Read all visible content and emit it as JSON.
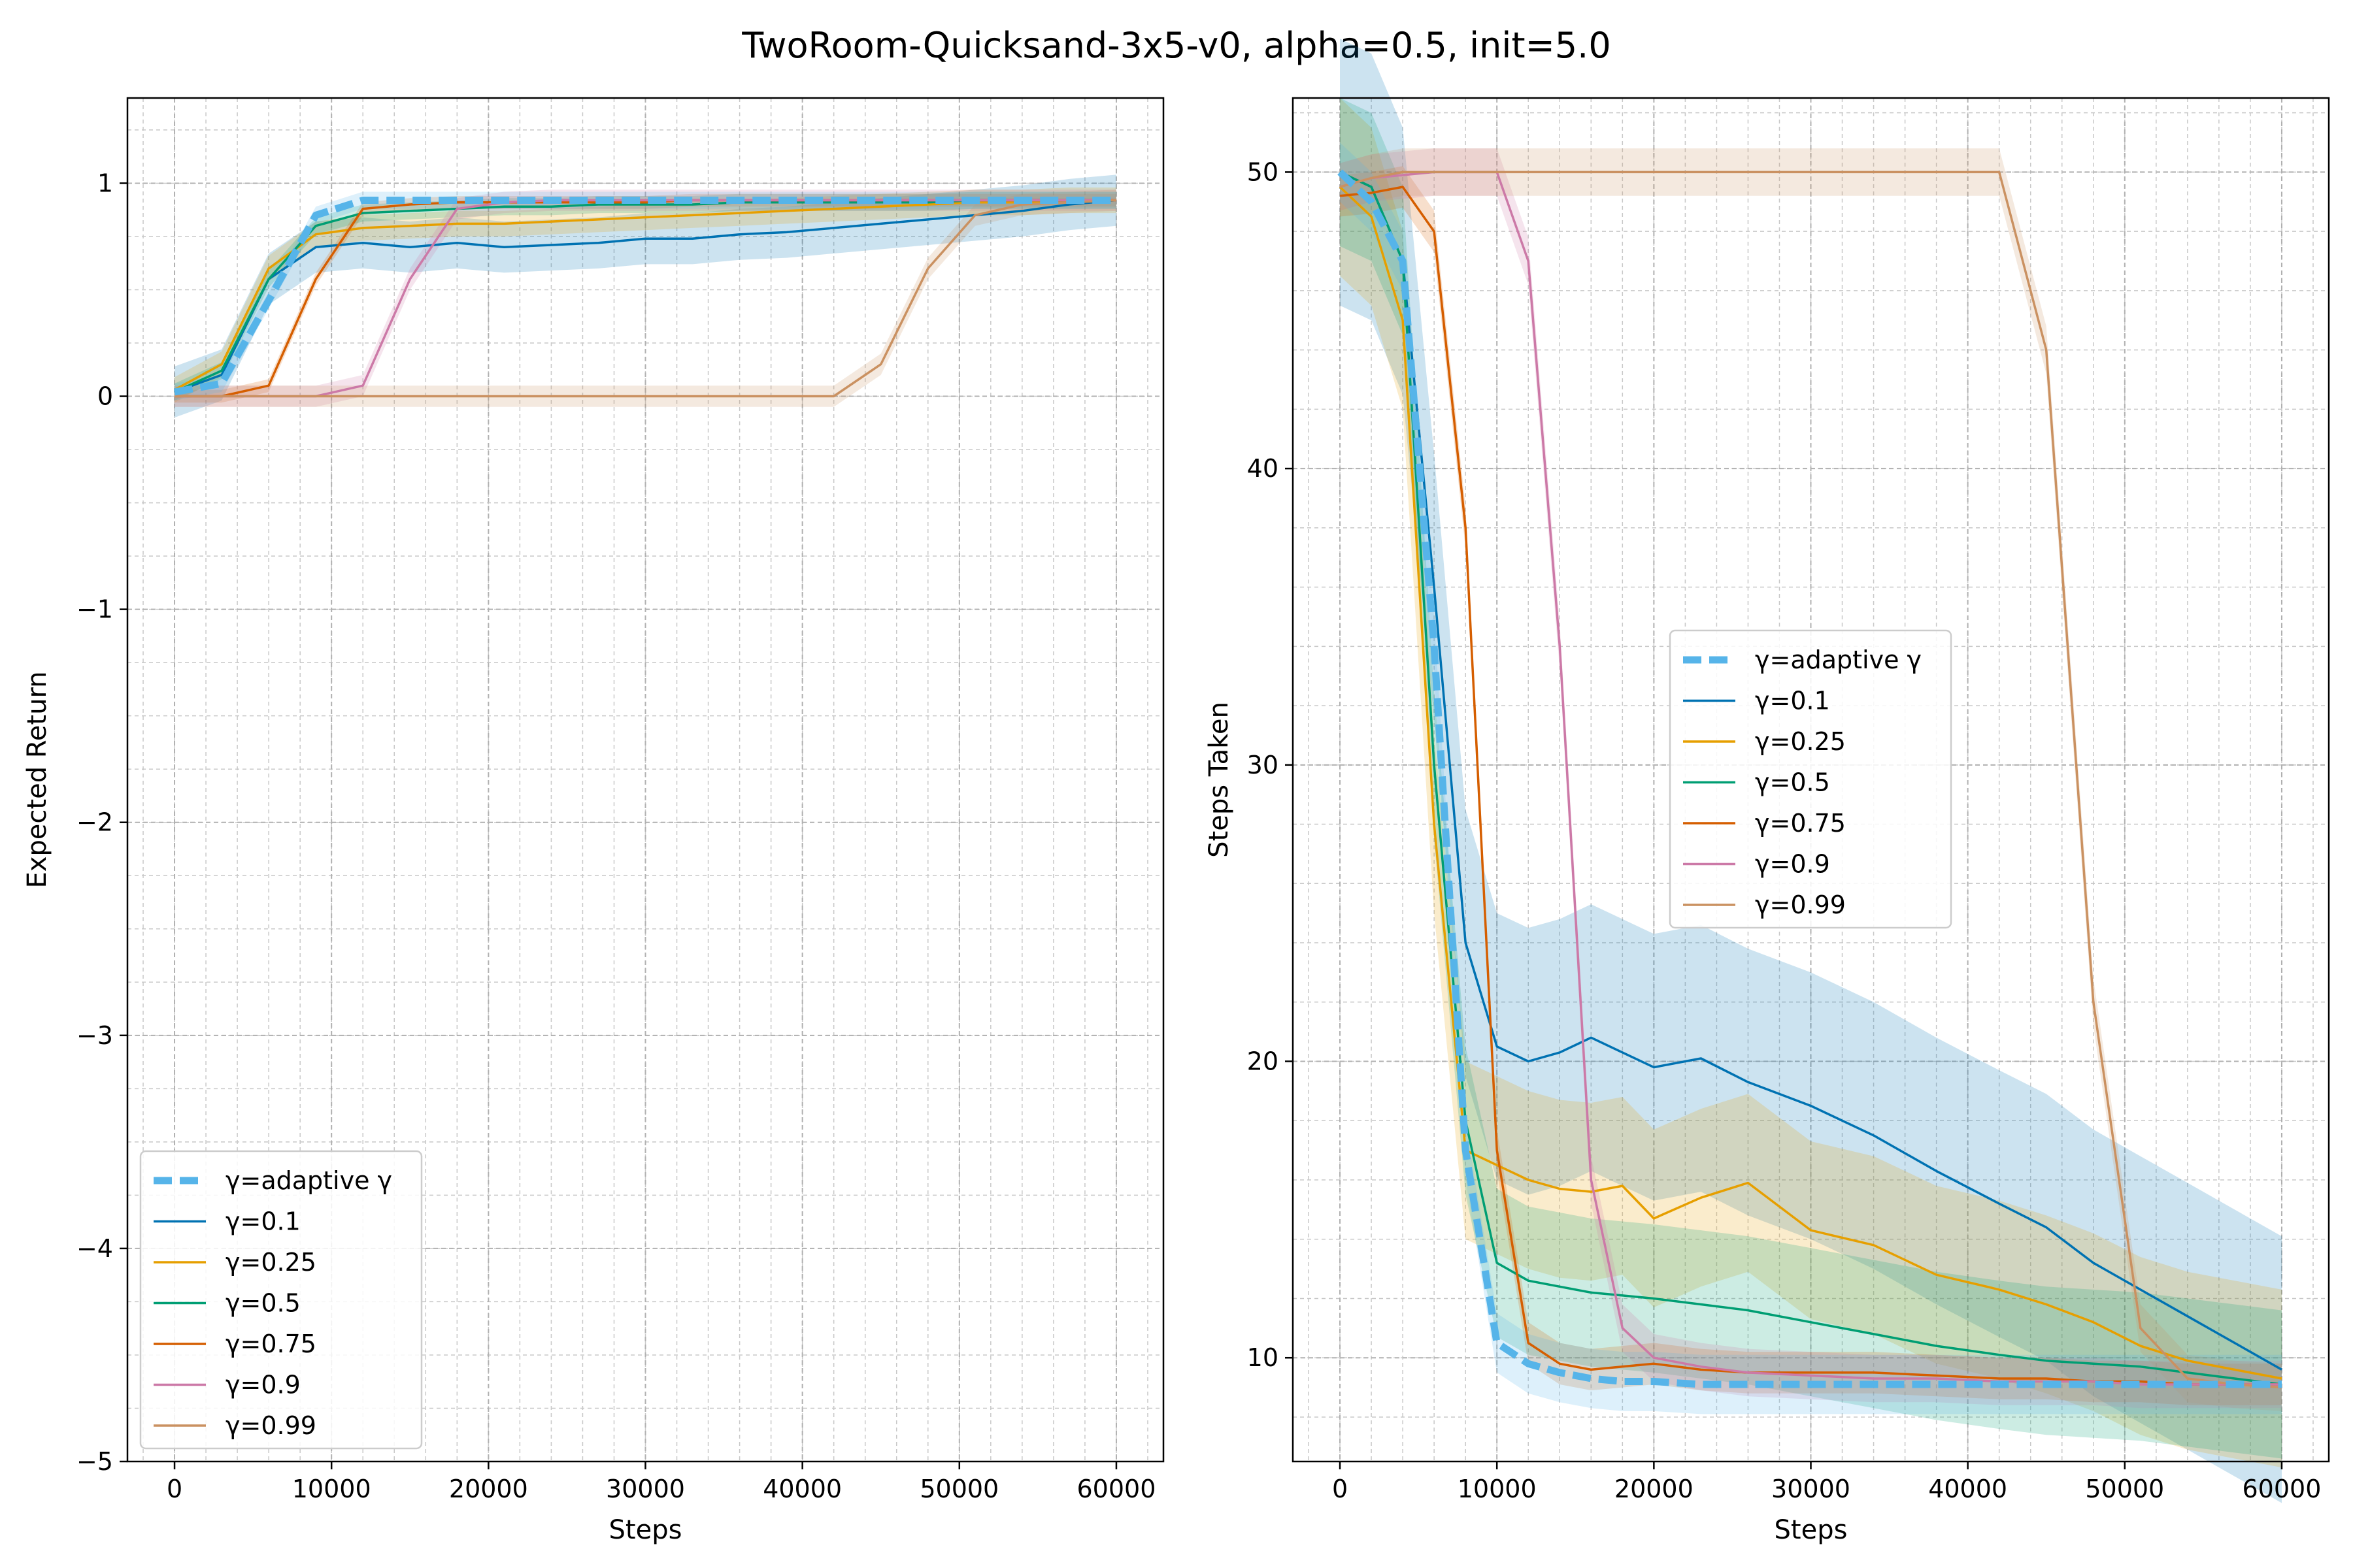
{
  "figure_title": "TwoRoom-Quicksand-3x5-v0, alpha=0.5, init=5.0",
  "colors": {
    "adaptive": "#56b4e9",
    "g01": "#0072b2",
    "g025": "#e69f00",
    "g05": "#009e73",
    "g075": "#d55e00",
    "g09": "#cc79a7",
    "g099": "#ca9161"
  },
  "chart_data": [
    {
      "type": "line",
      "title": "",
      "xlabel": "Steps",
      "ylabel": "Expected Return",
      "xlim": [
        -3000,
        63000
      ],
      "ylim": [
        -5,
        1.4
      ],
      "xticks": [
        0,
        10000,
        20000,
        30000,
        40000,
        50000,
        60000
      ],
      "yticks": [
        -5,
        -4,
        -3,
        -2,
        -1,
        0,
        1
      ],
      "grid": true,
      "legend_position": "lower-left",
      "x": [
        0,
        3000,
        6000,
        9000,
        12000,
        15000,
        18000,
        21000,
        24000,
        27000,
        30000,
        33000,
        36000,
        39000,
        42000,
        45000,
        48000,
        51000,
        54000,
        57000,
        60000
      ],
      "series": [
        {
          "name": "γ=adaptive γ",
          "color_key": "adaptive",
          "dashed": true,
          "band": 0.04,
          "values": [
            0.02,
            0.06,
            0.45,
            0.85,
            0.92,
            0.92,
            0.92,
            0.92,
            0.92,
            0.92,
            0.92,
            0.92,
            0.92,
            0.92,
            0.92,
            0.92,
            0.92,
            0.92,
            0.92,
            0.92,
            0.92
          ]
        },
        {
          "name": "γ=0.1",
          "color_key": "g01",
          "dashed": false,
          "band": 0.12,
          "values": [
            0.02,
            0.1,
            0.55,
            0.7,
            0.72,
            0.7,
            0.72,
            0.7,
            0.71,
            0.72,
            0.74,
            0.74,
            0.76,
            0.77,
            0.79,
            0.81,
            0.83,
            0.85,
            0.87,
            0.9,
            0.92
          ]
        },
        {
          "name": "γ=0.25",
          "color_key": "g025",
          "dashed": false,
          "band": 0.06,
          "values": [
            0.03,
            0.15,
            0.6,
            0.76,
            0.79,
            0.8,
            0.81,
            0.81,
            0.82,
            0.83,
            0.84,
            0.85,
            0.86,
            0.87,
            0.88,
            0.89,
            0.9,
            0.91,
            0.91,
            0.92,
            0.92
          ]
        },
        {
          "name": "γ=0.5",
          "color_key": "g05",
          "dashed": false,
          "band": 0.04,
          "values": [
            0.02,
            0.12,
            0.55,
            0.8,
            0.86,
            0.87,
            0.88,
            0.89,
            0.89,
            0.9,
            0.9,
            0.9,
            0.91,
            0.91,
            0.91,
            0.91,
            0.91,
            0.92,
            0.92,
            0.92,
            0.92
          ]
        },
        {
          "name": "γ=0.75",
          "color_key": "g075",
          "dashed": false,
          "band": 0.03,
          "values": [
            0.0,
            0.0,
            0.05,
            0.55,
            0.88,
            0.9,
            0.91,
            0.91,
            0.91,
            0.91,
            0.91,
            0.92,
            0.92,
            0.92,
            0.92,
            0.92,
            0.92,
            0.92,
            0.92,
            0.92,
            0.92
          ]
        },
        {
          "name": "γ=0.9",
          "color_key": "g09",
          "dashed": false,
          "band": 0.05,
          "values": [
            0.0,
            0.0,
            0.0,
            0.0,
            0.05,
            0.55,
            0.88,
            0.91,
            0.92,
            0.92,
            0.92,
            0.92,
            0.92,
            0.92,
            0.92,
            0.92,
            0.92,
            0.92,
            0.92,
            0.92,
            0.92
          ]
        },
        {
          "name": "γ=0.99",
          "color_key": "g099",
          "dashed": false,
          "band": 0.05,
          "values": [
            0.0,
            0.0,
            0.0,
            0.0,
            0.0,
            0.0,
            0.0,
            0.0,
            0.0,
            0.0,
            0.0,
            0.0,
            0.0,
            0.0,
            0.0,
            0.15,
            0.6,
            0.85,
            0.9,
            0.91,
            0.92
          ]
        }
      ]
    },
    {
      "type": "line",
      "title": "",
      "xlabel": "Steps",
      "ylabel": "Steps Taken",
      "xlim": [
        -3000,
        63000
      ],
      "ylim": [
        6.5,
        52.5
      ],
      "xticks": [
        0,
        10000,
        20000,
        30000,
        40000,
        50000,
        60000
      ],
      "yticks": [
        10,
        20,
        30,
        40,
        50
      ],
      "grid": true,
      "legend_position": "center",
      "x": [
        0,
        2000,
        4000,
        6000,
        8000,
        10000,
        12000,
        14000,
        16000,
        18000,
        20000,
        23000,
        26000,
        30000,
        34000,
        38000,
        42000,
        45000,
        48000,
        51000,
        54000,
        57000,
        60000
      ],
      "series": [
        {
          "name": "γ=adaptive γ",
          "color_key": "adaptive",
          "dashed": true,
          "band": 1.0,
          "values": [
            50,
            49,
            47,
            34,
            17,
            10.5,
            9.8,
            9.5,
            9.3,
            9.2,
            9.2,
            9.1,
            9.1,
            9.1,
            9.1,
            9.1,
            9.1,
            9.1,
            9.1,
            9.1,
            9.1,
            9.1,
            9.1
          ]
        },
        {
          "name": "γ=0.1",
          "color_key": "g01",
          "dashed": false,
          "band": 4.5,
          "values": [
            50,
            49.5,
            47,
            36,
            24,
            20.5,
            20,
            20.3,
            20.8,
            20.3,
            19.8,
            20.1,
            19.3,
            18.5,
            17.5,
            16.3,
            15.2,
            14.4,
            13.2,
            12.3,
            11.4,
            10.5,
            9.6
          ]
        },
        {
          "name": "γ=0.25",
          "color_key": "g025",
          "dashed": false,
          "band": 3.0,
          "values": [
            49.5,
            48.5,
            45,
            28,
            17,
            16.5,
            16,
            15.7,
            15.6,
            15.8,
            14.7,
            15.4,
            15.9,
            14.3,
            13.8,
            12.8,
            12.3,
            11.8,
            11.2,
            10.4,
            9.9,
            9.6,
            9.3
          ]
        },
        {
          "name": "γ=0.5",
          "color_key": "g05",
          "dashed": false,
          "band": 2.5,
          "values": [
            50,
            49.5,
            47,
            30,
            18,
            13.2,
            12.6,
            12.4,
            12.2,
            12.1,
            12.0,
            11.8,
            11.6,
            11.2,
            10.8,
            10.4,
            10.1,
            9.9,
            9.8,
            9.7,
            9.5,
            9.3,
            9.1
          ]
        },
        {
          "name": "γ=0.75",
          "color_key": "g075",
          "dashed": false,
          "band": 0.7,
          "values": [
            49.2,
            49.3,
            49.5,
            48,
            38,
            17,
            10.5,
            9.8,
            9.6,
            9.7,
            9.8,
            9.6,
            9.5,
            9.5,
            9.5,
            9.4,
            9.3,
            9.3,
            9.2,
            9.2,
            9.1,
            9.1,
            9.1
          ]
        },
        {
          "name": "γ=0.9",
          "color_key": "g09",
          "dashed": false,
          "band": 0.8,
          "values": [
            49.5,
            49.8,
            49.9,
            50,
            50,
            50,
            47,
            34,
            16,
            11,
            10,
            9.7,
            9.5,
            9.4,
            9.3,
            9.3,
            9.2,
            9.2,
            9.2,
            9.1,
            9.1,
            9.1,
            9.1
          ]
        },
        {
          "name": "γ=0.99",
          "color_key": "g099",
          "dashed": false,
          "band": 0.8,
          "values": [
            49.5,
            49.8,
            50,
            50,
            50,
            50,
            50,
            50,
            50,
            50,
            50,
            50,
            50,
            50,
            50,
            50,
            50,
            44,
            22,
            11,
            9.3,
            9.1,
            9.0
          ]
        }
      ]
    }
  ]
}
